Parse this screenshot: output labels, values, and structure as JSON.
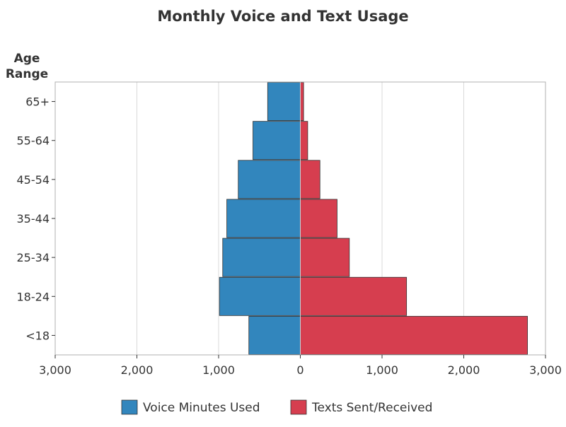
{
  "chart_data": {
    "type": "bar",
    "orientation": "horizontal",
    "layout": "butterfly",
    "title": "Monthly Voice and Text Usage",
    "ylabel_line1": "Age",
    "ylabel_line2": "Range",
    "categories": [
      "65+",
      "55-64",
      "45-54",
      "35-44",
      "25-34",
      "18-24",
      "<18"
    ],
    "series": [
      {
        "name": "Voice Minutes Used",
        "side": "left",
        "color": "#3286BD",
        "values": [
          400,
          580,
          760,
          900,
          950,
          990,
          630
        ]
      },
      {
        "name": "Texts Sent/Received",
        "side": "right",
        "color": "#D63E4F",
        "values": [
          40,
          90,
          240,
          450,
          600,
          1300,
          2780
        ]
      }
    ],
    "xlim": [
      -3000,
      3000
    ],
    "x_ticks": [
      -3000,
      -2000,
      -1000,
      0,
      1000,
      2000,
      3000
    ],
    "x_tick_labels": [
      "3,000",
      "2,000",
      "1,000",
      "0",
      "1,000",
      "2,000",
      "3,000"
    ],
    "grid": "vertical",
    "legend_position": "bottom"
  }
}
